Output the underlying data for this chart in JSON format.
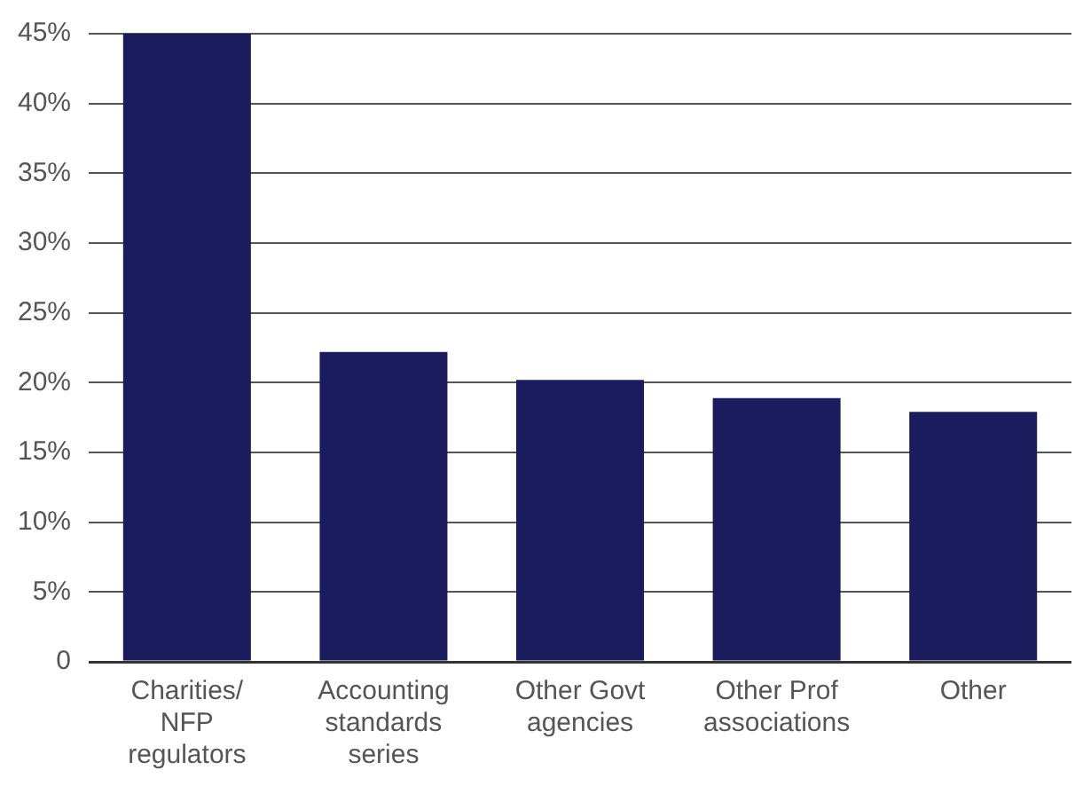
{
  "chart_data": {
    "type": "bar",
    "categories": [
      "Charities/ NFP regulators",
      "Accounting standards series",
      "Other Govt agencies",
      "Other Prof associations",
      "Other"
    ],
    "values": [
      45,
      22.2,
      20.2,
      18.9,
      17.9
    ],
    "color": "#1b1c5e",
    "ylim": [
      0,
      45
    ],
    "yticks": [
      {
        "value": 0,
        "label": "0"
      },
      {
        "value": 5,
        "label": "5%"
      },
      {
        "value": 10,
        "label": "10%"
      },
      {
        "value": 15,
        "label": "15%"
      },
      {
        "value": 20,
        "label": "20%"
      },
      {
        "value": 25,
        "label": "25%"
      },
      {
        "value": 30,
        "label": "30%"
      },
      {
        "value": 35,
        "label": "35%"
      },
      {
        "value": 40,
        "label": "40%"
      },
      {
        "value": 45,
        "label": "45%"
      }
    ],
    "grid": "y",
    "legend": false
  }
}
